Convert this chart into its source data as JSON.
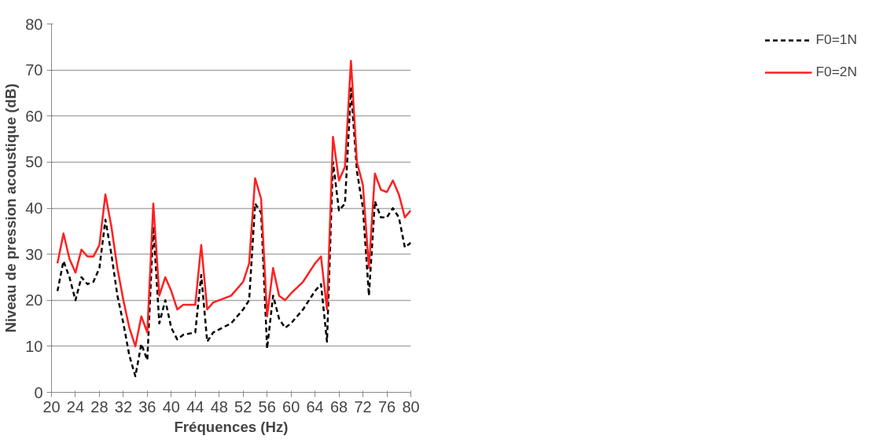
{
  "chart_data": {
    "type": "line",
    "xlabel": "Fréquences (Hz)",
    "ylabel": "Niveau de pression acoustique (dB)",
    "x": [
      21,
      22,
      23,
      24,
      25,
      26,
      27,
      28,
      29,
      30,
      31,
      32,
      33,
      34,
      35,
      36,
      37,
      38,
      39,
      40,
      41,
      42,
      44,
      45,
      46,
      47,
      50,
      52,
      53,
      54,
      55,
      56,
      57,
      58,
      59,
      60,
      62,
      64,
      65,
      66,
      67,
      68,
      69,
      70,
      71,
      72,
      73,
      74,
      75,
      76,
      77,
      78,
      79,
      80
    ],
    "series": [
      {
        "name": "F0=1N",
        "color": "#000000",
        "line_style": "dashed",
        "values": [
          22,
          28.5,
          25,
          20,
          25,
          23.5,
          24,
          27,
          37.5,
          30,
          21,
          15,
          8,
          3.5,
          10.5,
          7,
          36,
          15,
          20,
          14,
          11.5,
          12.5,
          13,
          25.5,
          11,
          13,
          15,
          18,
          20,
          41,
          39,
          9.5,
          21,
          16,
          14,
          15,
          18,
          22,
          23.5,
          11,
          50,
          39.5,
          41,
          66,
          48,
          40,
          21,
          41.5,
          38,
          38,
          40,
          38,
          31.5,
          32.5
        ]
      },
      {
        "name": "F0=2N",
        "color": "#ff2020",
        "line_style": "solid",
        "values": [
          28,
          34.5,
          29,
          26,
          31,
          29.5,
          29.5,
          32,
          43,
          36,
          27,
          20,
          14,
          10,
          16.5,
          13,
          41,
          21,
          25,
          22,
          18,
          19,
          19,
          32,
          18,
          19.5,
          21,
          24,
          28,
          46.5,
          42,
          16.5,
          27,
          21,
          20,
          21.5,
          24,
          28,
          29.5,
          18,
          55.5,
          46,
          49,
          72,
          50,
          45,
          27,
          47.5,
          44,
          43.5,
          46,
          43,
          38,
          39.5
        ]
      }
    ],
    "xlim": [
      20,
      80
    ],
    "xticks": [
      20,
      24,
      28,
      32,
      36,
      40,
      44,
      48,
      52,
      56,
      60,
      64,
      68,
      72,
      76,
      80
    ],
    "ylim": [
      0,
      80
    ],
    "yticks": [
      0,
      10,
      20,
      30,
      40,
      50,
      60,
      70,
      80
    ],
    "grid": "y",
    "legend": "right",
    "marker": "none"
  }
}
